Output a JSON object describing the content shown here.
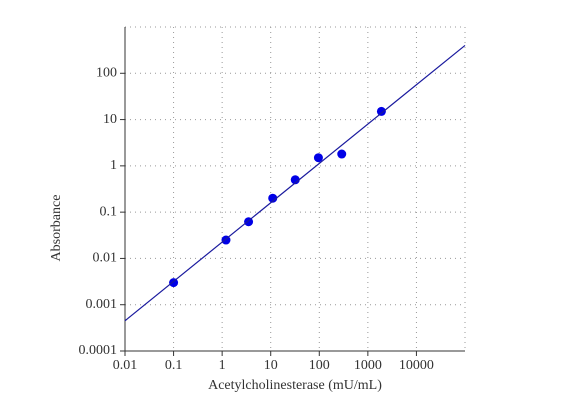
{
  "chart_data": {
    "type": "scatter",
    "x_label": "Acetylcholinesterase (mU/mL)",
    "y_label": "Absorbance",
    "xscale": "log",
    "yscale": "log",
    "grid": true,
    "xlim": [
      0.01,
      100000
    ],
    "ylim": [
      0.0001,
      1000
    ],
    "xticks": [
      0.01,
      0.1,
      1,
      10,
      100,
      1000,
      10000
    ],
    "yticks": [
      0.0001,
      0.001,
      0.01,
      0.1,
      1,
      10,
      100
    ],
    "series": [
      {
        "mode": "markers",
        "color": "#0000e6",
        "x": [
          0.1,
          1.2,
          3.5,
          11,
          32,
          96,
          290,
          1900
        ],
        "values": [
          0.003,
          0.025,
          0.062,
          0.2,
          0.5,
          1.5,
          1.8,
          15
        ]
      },
      {
        "mode": "lines",
        "color": "#1a1a9e",
        "x": [
          0.01,
          100000
        ],
        "values": [
          0.00045,
          400
        ]
      }
    ]
  }
}
